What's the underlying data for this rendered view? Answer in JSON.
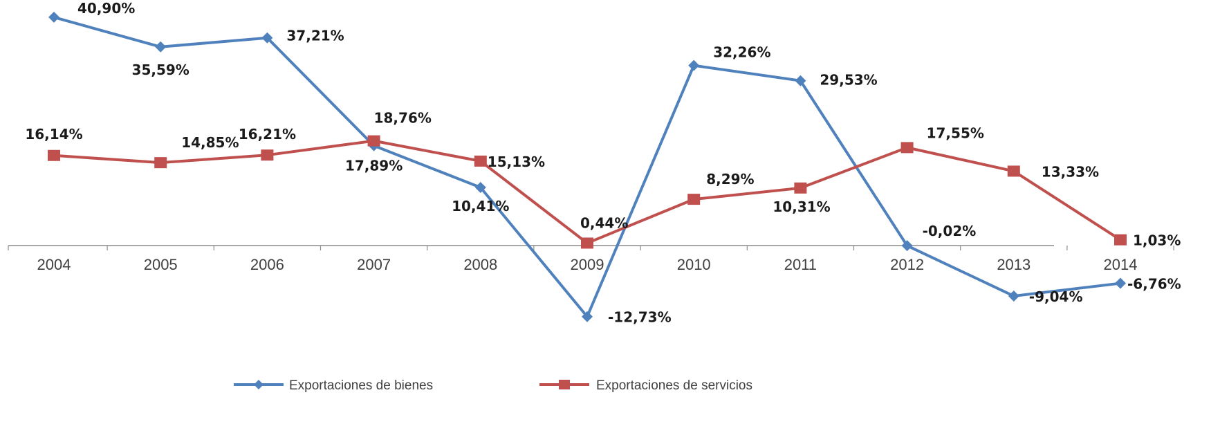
{
  "chart_data": {
    "type": "line",
    "categories": [
      "2004",
      "2005",
      "2006",
      "2007",
      "2008",
      "2009",
      "2010",
      "2011",
      "2012",
      "2013",
      "2014"
    ],
    "ylim": [
      -20,
      42
    ],
    "grid": false,
    "legend_position": "bottom",
    "series": [
      {
        "name": "Exportaciones de bienes",
        "color": "#4f81bd",
        "marker": "diamond",
        "values": [
          40.9,
          35.59,
          37.21,
          17.89,
          10.41,
          -12.73,
          32.26,
          29.53,
          -0.02,
          -9.04,
          -6.76
        ],
        "labels": [
          "40,90%",
          "35,59%",
          "37,21%",
          "17,89%",
          "10,41%",
          "-12,73%",
          "32,26%",
          "29,53%",
          "-0,02%",
          "-9,04%",
          "-6,76%"
        ]
      },
      {
        "name": "Exportaciones de servicios",
        "color": "#c0504d",
        "marker": "square",
        "values": [
          16.14,
          14.85,
          16.21,
          18.76,
          15.13,
          0.44,
          8.29,
          10.31,
          17.55,
          13.33,
          1.03
        ],
        "labels": [
          "16,14%",
          "14,85%",
          "16,21%",
          "18,76%",
          "15,13%",
          "0,44%",
          "8,29%",
          "10,31%",
          "17,55%",
          "13,33%",
          "1,03%"
        ]
      }
    ]
  }
}
